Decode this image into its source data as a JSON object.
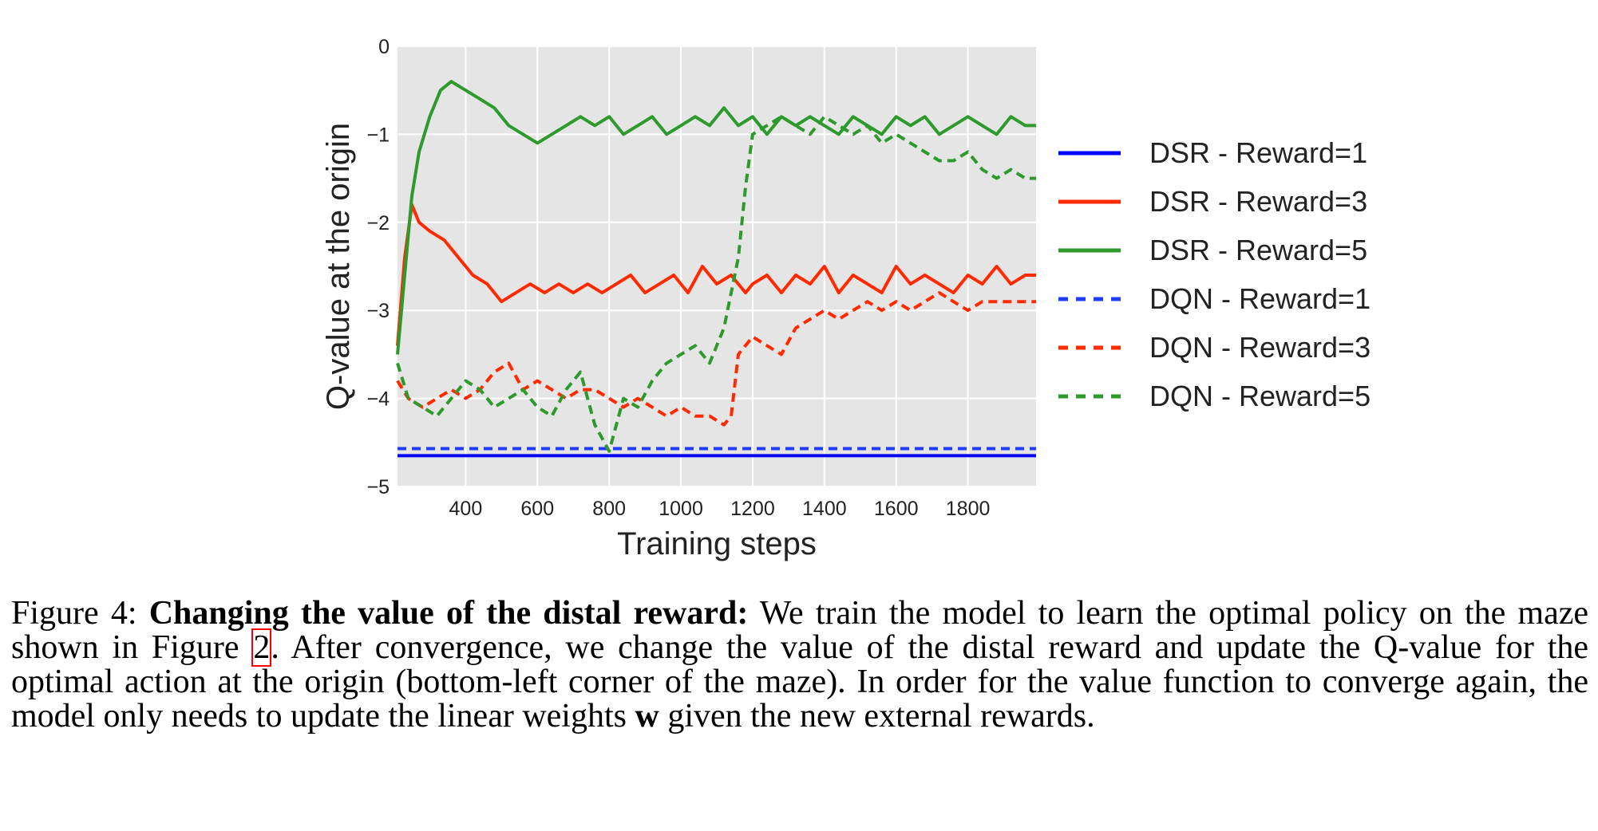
{
  "chart_data": {
    "type": "line",
    "xlabel": "Training steps",
    "ylabel": "Q-value at the origin",
    "xlim": [
      210,
      1990
    ],
    "ylim": [
      -5,
      0
    ],
    "xticks": [
      400,
      600,
      800,
      1000,
      1200,
      1400,
      1600,
      1800
    ],
    "xtick_labels": [
      "400",
      "600",
      "800",
      "1000",
      "1200",
      "1400",
      "1600",
      "1800"
    ],
    "yticks": [
      0,
      -1,
      -2,
      -3,
      -4,
      -5
    ],
    "ytick_labels": [
      "0",
      "−1",
      "−2",
      "−3",
      "−4",
      "−5"
    ],
    "grid": true,
    "legend_position": "right",
    "series": [
      {
        "name": "DSR - Reward=1",
        "color": "#0000ff",
        "style": "solid",
        "x": [
          210,
          1990
        ],
        "y": [
          -4.65,
          -4.65
        ]
      },
      {
        "name": "DSR - Reward=3",
        "color": "#ff2a00",
        "style": "solid",
        "x": [
          210,
          230,
          250,
          270,
          300,
          340,
          380,
          420,
          460,
          500,
          540,
          580,
          620,
          660,
          700,
          740,
          780,
          820,
          860,
          900,
          940,
          980,
          1020,
          1060,
          1100,
          1140,
          1180,
          1200,
          1240,
          1280,
          1320,
          1360,
          1400,
          1440,
          1480,
          1520,
          1560,
          1600,
          1640,
          1680,
          1720,
          1760,
          1800,
          1840,
          1880,
          1920,
          1960,
          1990
        ],
        "y": [
          -3.4,
          -2.4,
          -1.8,
          -2.0,
          -2.1,
          -2.2,
          -2.4,
          -2.6,
          -2.7,
          -2.9,
          -2.8,
          -2.7,
          -2.8,
          -2.7,
          -2.8,
          -2.7,
          -2.8,
          -2.7,
          -2.6,
          -2.8,
          -2.7,
          -2.6,
          -2.8,
          -2.5,
          -2.7,
          -2.6,
          -2.8,
          -2.7,
          -2.6,
          -2.8,
          -2.6,
          -2.7,
          -2.5,
          -2.8,
          -2.6,
          -2.7,
          -2.8,
          -2.5,
          -2.7,
          -2.6,
          -2.7,
          -2.8,
          -2.6,
          -2.7,
          -2.5,
          -2.7,
          -2.6,
          -2.6
        ]
      },
      {
        "name": "DSR - Reward=5",
        "color": "#2e9a2e",
        "style": "solid",
        "x": [
          210,
          230,
          250,
          270,
          300,
          330,
          360,
          400,
          440,
          480,
          520,
          560,
          600,
          640,
          680,
          720,
          760,
          800,
          840,
          880,
          920,
          960,
          1000,
          1040,
          1080,
          1120,
          1160,
          1200,
          1240,
          1280,
          1320,
          1360,
          1400,
          1440,
          1480,
          1520,
          1560,
          1600,
          1640,
          1680,
          1720,
          1760,
          1800,
          1840,
          1880,
          1920,
          1960,
          1990
        ],
        "y": [
          -3.5,
          -2.6,
          -1.7,
          -1.2,
          -0.8,
          -0.5,
          -0.4,
          -0.5,
          -0.6,
          -0.7,
          -0.9,
          -1.0,
          -1.1,
          -1.0,
          -0.9,
          -0.8,
          -0.9,
          -0.8,
          -1.0,
          -0.9,
          -0.8,
          -1.0,
          -0.9,
          -0.8,
          -0.9,
          -0.7,
          -0.9,
          -0.8,
          -1.0,
          -0.8,
          -0.9,
          -0.8,
          -0.9,
          -1.0,
          -0.8,
          -0.9,
          -1.0,
          -0.8,
          -0.9,
          -0.8,
          -1.0,
          -0.9,
          -0.8,
          -0.9,
          -1.0,
          -0.8,
          -0.9,
          -0.9
        ]
      },
      {
        "name": "DQN - Reward=1",
        "color": "#1f3cff",
        "style": "dashed",
        "x": [
          210,
          1990
        ],
        "y": [
          -4.57,
          -4.57
        ]
      },
      {
        "name": "DQN - Reward=3",
        "color": "#ff2a00",
        "style": "dashed",
        "x": [
          210,
          240,
          280,
          320,
          360,
          400,
          440,
          480,
          520,
          560,
          600,
          640,
          680,
          720,
          760,
          800,
          840,
          880,
          920,
          960,
          1000,
          1040,
          1080,
          1120,
          1140,
          1160,
          1200,
          1240,
          1280,
          1320,
          1360,
          1400,
          1440,
          1480,
          1520,
          1560,
          1600,
          1640,
          1680,
          1720,
          1760,
          1800,
          1840,
          1880,
          1920,
          1960,
          1990
        ],
        "y": [
          -3.8,
          -4.0,
          -4.1,
          -4.0,
          -3.9,
          -4.0,
          -3.9,
          -3.7,
          -3.6,
          -3.9,
          -3.8,
          -3.9,
          -4.0,
          -3.9,
          -3.9,
          -4.0,
          -4.1,
          -4.0,
          -4.1,
          -4.2,
          -4.1,
          -4.2,
          -4.2,
          -4.3,
          -4.2,
          -3.5,
          -3.3,
          -3.4,
          -3.5,
          -3.2,
          -3.1,
          -3.0,
          -3.1,
          -3.0,
          -2.9,
          -3.0,
          -2.9,
          -3.0,
          -2.9,
          -2.8,
          -2.9,
          -3.0,
          -2.9,
          -2.9,
          -2.9,
          -2.9,
          -2.9
        ]
      },
      {
        "name": "DQN - Reward=5",
        "color": "#2e9a2e",
        "style": "dashed",
        "x": [
          210,
          240,
          280,
          320,
          360,
          400,
          440,
          480,
          520,
          560,
          600,
          640,
          680,
          720,
          760,
          800,
          840,
          880,
          920,
          960,
          1000,
          1040,
          1080,
          1120,
          1140,
          1160,
          1180,
          1200,
          1240,
          1280,
          1320,
          1360,
          1400,
          1440,
          1480,
          1520,
          1560,
          1600,
          1640,
          1680,
          1720,
          1760,
          1800,
          1840,
          1880,
          1920,
          1960,
          1990
        ],
        "y": [
          -3.6,
          -4.0,
          -4.1,
          -4.2,
          -4.0,
          -3.8,
          -3.9,
          -4.1,
          -4.0,
          -3.9,
          -4.1,
          -4.2,
          -3.9,
          -3.7,
          -4.3,
          -4.6,
          -4.0,
          -4.1,
          -3.8,
          -3.6,
          -3.5,
          -3.4,
          -3.6,
          -3.2,
          -2.8,
          -2.4,
          -1.6,
          -1.0,
          -0.9,
          -0.8,
          -0.9,
          -1.0,
          -0.8,
          -0.9,
          -1.0,
          -0.9,
          -1.1,
          -1.0,
          -1.1,
          -1.2,
          -1.3,
          -1.3,
          -1.2,
          -1.4,
          -1.5,
          -1.4,
          -1.5,
          -1.5
        ]
      }
    ]
  },
  "caption": {
    "figure_label": "Figure 4:",
    "bold_title": "Changing the value of the distal reward:",
    "text_1": "We train the model to learn the optimal policy on the maze shown in Figure",
    "figure_ref": "2",
    "text_2": ". After convergence, we change the value of the distal reward and update the Q-value for the optimal action at the origin (bottom-left corner of the maze). In order for the value function to converge again, the model only needs to update the linear weights",
    "weights_symbol": "w",
    "text_3": "given the new external rewards."
  }
}
